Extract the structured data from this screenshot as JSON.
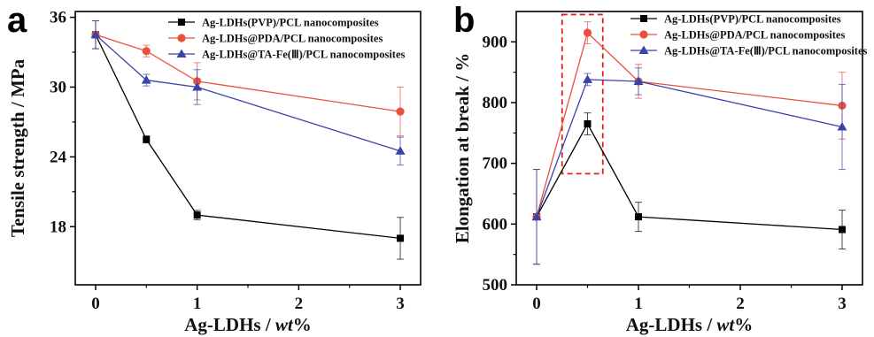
{
  "chart_data": [
    {
      "panel_label": "a",
      "type": "line",
      "xlabel": "Ag-LDHs / ",
      "xlabel_italic": "wt",
      "xlabel_suffix": "%",
      "ylabel": "Tensile strength / MPa",
      "xlim": [
        -0.2,
        3.2
      ],
      "ylim": [
        13,
        36.5
      ],
      "xticks": [
        0,
        1,
        2,
        3
      ],
      "yticks": [
        18,
        24,
        30,
        36
      ],
      "x": [
        0,
        0.5,
        1,
        3
      ],
      "series": [
        {
          "name": "Ag-LDHs(PVP)/PCL nanocomposites",
          "color": "#000000",
          "marker": "square",
          "values": [
            34.5,
            25.5,
            19.0,
            17.0
          ],
          "errors": [
            1.2,
            0.3,
            0.4,
            1.8
          ]
        },
        {
          "name": "Ag-LDHs@PDA/PCL nanocomposites",
          "color": "#e9513f",
          "marker": "circle",
          "values": [
            34.5,
            33.1,
            30.5,
            27.9
          ],
          "errors": [
            1.2,
            0.5,
            1.6,
            2.1
          ]
        },
        {
          "name": "Ag-LDHs@TA-Fe(Ⅲ)/PCL nanocomposites",
          "color": "#3a43a8",
          "marker": "triangle",
          "values": [
            34.5,
            30.6,
            30.0,
            24.5
          ],
          "errors": [
            1.2,
            0.5,
            1.5,
            1.2
          ]
        }
      ]
    },
    {
      "panel_label": "b",
      "type": "line",
      "xlabel": "Ag-LDHs / ",
      "xlabel_italic": "wt",
      "xlabel_suffix": "%",
      "ylabel": "Elongation at break / %",
      "xlim": [
        -0.2,
        3.2
      ],
      "ylim": [
        500,
        950
      ],
      "xticks": [
        0,
        1,
        2,
        3
      ],
      "yticks": [
        500,
        600,
        700,
        800,
        900
      ],
      "x": [
        0,
        0.5,
        1,
        3
      ],
      "highlight_box": {
        "x": [
          0.25,
          0.65
        ],
        "y": [
          683,
          945
        ],
        "color": "#e02020"
      },
      "series": [
        {
          "name": "Ag-LDHs(PVP)/PCL nanocomposites",
          "color": "#000000",
          "marker": "square",
          "values": [
            612,
            765,
            612,
            591
          ],
          "errors": [
            78,
            18,
            24,
            32
          ]
        },
        {
          "name": "Ag-LDHs@PDA/PCL nanocomposites",
          "color": "#e9513f",
          "marker": "circle",
          "values": [
            612,
            915,
            835,
            795
          ],
          "errors": [
            78,
            18,
            28,
            55
          ]
        },
        {
          "name": "Ag-LDHs@TA-Fe(Ⅲ)/PCL nanocomposites",
          "color": "#3a43a8",
          "marker": "triangle",
          "values": [
            612,
            838,
            835,
            760
          ],
          "errors": [
            78,
            10,
            22,
            70
          ]
        }
      ]
    }
  ]
}
